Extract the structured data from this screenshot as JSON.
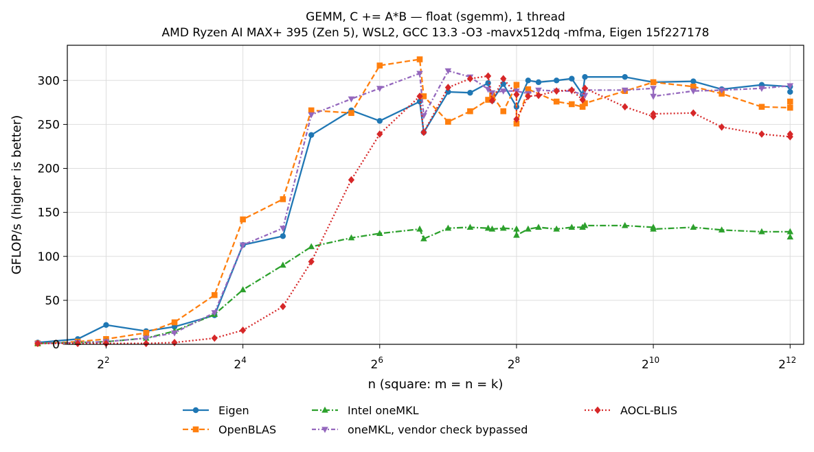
{
  "chart_data": {
    "type": "line",
    "title": "GEMM, C += A*B — float (sgemm), 1 thread",
    "subtitle": "AMD Ryzen AI MAX+ 395 (Zen 5), WSL2, GCC 13.3 -O3 -mavx512dq -mfma, Eigen 15f227178",
    "xlabel": "n (square: m = n = k)",
    "ylabel": "GFLOP/s (higher is better)",
    "x_scale": "log2",
    "xlim": [
      2.7,
      4700
    ],
    "ylim": [
      0,
      340
    ],
    "x_ticks": [
      {
        "value": 4,
        "base": "2",
        "exp": "2"
      },
      {
        "value": 16,
        "base": "2",
        "exp": "4"
      },
      {
        "value": 64,
        "base": "2",
        "exp": "6"
      },
      {
        "value": 256,
        "base": "2",
        "exp": "8"
      },
      {
        "value": 1024,
        "base": "2",
        "exp": "10"
      },
      {
        "value": 4096,
        "base": "2",
        "exp": "12"
      }
    ],
    "y_ticks": [
      0,
      50,
      100,
      150,
      200,
      250,
      300
    ],
    "grid": true,
    "legend_position": "bottom",
    "series": [
      {
        "name": "Eigen",
        "color": "#1f77b4",
        "marker": "circle",
        "dash": "",
        "points": [
          [
            2,
            2
          ],
          [
            3,
            6
          ],
          [
            4,
            22
          ],
          [
            6,
            15
          ],
          [
            8,
            20
          ],
          [
            12,
            33
          ],
          [
            16,
            113
          ],
          [
            24,
            123
          ],
          [
            32,
            238
          ],
          [
            48,
            266
          ],
          [
            64,
            254
          ],
          [
            96,
            276
          ],
          [
            100,
            241
          ],
          [
            128,
            287
          ],
          [
            160,
            286
          ],
          [
            192,
            297
          ],
          [
            200,
            277
          ],
          [
            224,
            296
          ],
          [
            256,
            270
          ],
          [
            288,
            300
          ],
          [
            320,
            298
          ],
          [
            384,
            300
          ],
          [
            448,
            302
          ],
          [
            500,
            284
          ],
          [
            512,
            304
          ],
          [
            768,
            304
          ],
          [
            1024,
            298
          ],
          [
            1536,
            299
          ],
          [
            2048,
            290
          ],
          [
            3072,
            295
          ],
          [
            4096,
            293
          ],
          [
            4096,
            287
          ]
        ]
      },
      {
        "name": "OpenBLAS",
        "color": "#ff7f0e",
        "marker": "square",
        "dash": "8,4",
        "points": [
          [
            2,
            1
          ],
          [
            3,
            3
          ],
          [
            4,
            6
          ],
          [
            6,
            13
          ],
          [
            8,
            25
          ],
          [
            12,
            56
          ],
          [
            16,
            142
          ],
          [
            24,
            165
          ],
          [
            32,
            266
          ],
          [
            48,
            263
          ],
          [
            64,
            317
          ],
          [
            96,
            324
          ],
          [
            100,
            282
          ],
          [
            128,
            253
          ],
          [
            160,
            265
          ],
          [
            192,
            278
          ],
          [
            200,
            283
          ],
          [
            224,
            265
          ],
          [
            256,
            295
          ],
          [
            256,
            251
          ],
          [
            288,
            290
          ],
          [
            384,
            276
          ],
          [
            448,
            273
          ],
          [
            500,
            270
          ],
          [
            512,
            274
          ],
          [
            768,
            288
          ],
          [
            1024,
            298
          ],
          [
            1536,
            293
          ],
          [
            2048,
            285
          ],
          [
            3072,
            270
          ],
          [
            4096,
            269
          ],
          [
            4096,
            276
          ]
        ]
      },
      {
        "name": "Intel oneMKL",
        "color": "#2ca02c",
        "marker": "triangle-up",
        "dash": "9,3,2,3",
        "points": [
          [
            2,
            1
          ],
          [
            3,
            2
          ],
          [
            4,
            3
          ],
          [
            6,
            7
          ],
          [
            8,
            15
          ],
          [
            12,
            34
          ],
          [
            16,
            62
          ],
          [
            24,
            90
          ],
          [
            32,
            111
          ],
          [
            48,
            121
          ],
          [
            64,
            126
          ],
          [
            96,
            131
          ],
          [
            100,
            120
          ],
          [
            128,
            132
          ],
          [
            160,
            133
          ],
          [
            192,
            132
          ],
          [
            200,
            131
          ],
          [
            224,
            132
          ],
          [
            256,
            131
          ],
          [
            256,
            124
          ],
          [
            288,
            131
          ],
          [
            320,
            133
          ],
          [
            384,
            131
          ],
          [
            448,
            133
          ],
          [
            500,
            133
          ],
          [
            512,
            135
          ],
          [
            768,
            135
          ],
          [
            1024,
            133
          ],
          [
            1024,
            131
          ],
          [
            1536,
            133
          ],
          [
            2048,
            130
          ],
          [
            3072,
            128
          ],
          [
            4096,
            128
          ],
          [
            4096,
            122
          ]
        ]
      },
      {
        "name": "oneMKL, vendor check bypassed",
        "color": "#9467bd",
        "marker": "triangle-down",
        "dash": "6,3,2,3",
        "points": [
          [
            2,
            1
          ],
          [
            3,
            2
          ],
          [
            4,
            3
          ],
          [
            6,
            7
          ],
          [
            8,
            13
          ],
          [
            12,
            36
          ],
          [
            16,
            113
          ],
          [
            24,
            132
          ],
          [
            32,
            261
          ],
          [
            48,
            279
          ],
          [
            64,
            291
          ],
          [
            96,
            308
          ],
          [
            100,
            260
          ],
          [
            128,
            311
          ],
          [
            160,
            304
          ],
          [
            192,
            290
          ],
          [
            200,
            286
          ],
          [
            224,
            288
          ],
          [
            256,
            288
          ],
          [
            288,
            285
          ],
          [
            320,
            289
          ],
          [
            384,
            288
          ],
          [
            448,
            288
          ],
          [
            512,
            283
          ],
          [
            512,
            289
          ],
          [
            768,
            289
          ],
          [
            1024,
            291
          ],
          [
            1024,
            282
          ],
          [
            1536,
            288
          ],
          [
            2048,
            289
          ],
          [
            3072,
            291
          ],
          [
            4096,
            294
          ]
        ]
      },
      {
        "name": "AOCL-BLIS",
        "color": "#d62728",
        "marker": "diamond",
        "dash": "2,3",
        "points": [
          [
            2,
            1
          ],
          [
            3,
            1
          ],
          [
            4,
            1
          ],
          [
            6,
            1
          ],
          [
            8,
            2
          ],
          [
            12,
            7
          ],
          [
            16,
            16
          ],
          [
            24,
            43
          ],
          [
            32,
            94
          ],
          [
            48,
            187
          ],
          [
            64,
            239
          ],
          [
            96,
            282
          ],
          [
            100,
            241
          ],
          [
            128,
            292
          ],
          [
            160,
            302
          ],
          [
            192,
            305
          ],
          [
            200,
            277
          ],
          [
            224,
            302
          ],
          [
            256,
            284
          ],
          [
            256,
            256
          ],
          [
            288,
            282
          ],
          [
            320,
            283
          ],
          [
            384,
            288
          ],
          [
            448,
            289
          ],
          [
            500,
            278
          ],
          [
            512,
            291
          ],
          [
            768,
            270
          ],
          [
            1024,
            259
          ],
          [
            1024,
            262
          ],
          [
            1536,
            263
          ],
          [
            2048,
            247
          ],
          [
            3072,
            239
          ],
          [
            4096,
            236
          ],
          [
            4096,
            239
          ]
        ]
      }
    ]
  }
}
